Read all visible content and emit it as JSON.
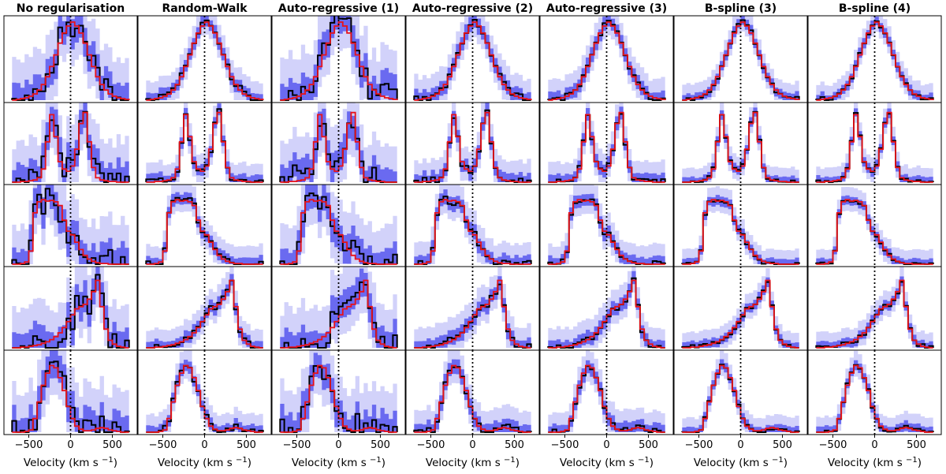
{
  "chart_data": {
    "type": "step-histogram-grid",
    "rows": 5,
    "columns": [
      "No regularisation",
      "Random-Walk",
      "Auto-regressive (1)",
      "Auto-regressive (2)",
      "Auto-regressive (3)",
      "B-spline (3)",
      "B-spline (4)"
    ],
    "xlabel": "Velocity (km s",
    "xlabel_sup": "−1",
    "xlabel_end": ")",
    "xlim": [
      -750,
      750
    ],
    "xticks": [
      -500,
      0,
      500
    ],
    "xtick_labels": [
      "−500",
      "0",
      "500"
    ],
    "reference_line": 0,
    "bins": [
      -675,
      -625,
      -575,
      -525,
      -475,
      -425,
      -375,
      -325,
      -275,
      -225,
      -175,
      -125,
      -75,
      -25,
      25,
      75,
      125,
      175,
      225,
      275,
      325,
      375,
      425,
      475,
      525,
      575,
      625,
      675
    ],
    "truth_profiles": [
      [
        0.0,
        0.01,
        0.02,
        0.03,
        0.05,
        0.08,
        0.13,
        0.2,
        0.3,
        0.43,
        0.58,
        0.73,
        0.86,
        0.95,
        1.0,
        0.95,
        0.86,
        0.73,
        0.58,
        0.43,
        0.3,
        0.2,
        0.13,
        0.08,
        0.05,
        0.03,
        0.02,
        0.01
      ],
      [
        0.0,
        0.0,
        0.01,
        0.01,
        0.02,
        0.03,
        0.06,
        0.18,
        0.55,
        0.92,
        0.62,
        0.28,
        0.18,
        0.15,
        0.22,
        0.45,
        0.8,
        0.95,
        0.55,
        0.2,
        0.06,
        0.03,
        0.02,
        0.01,
        0.01,
        0.0,
        0.0,
        0.0
      ],
      [
        0.0,
        0.0,
        0.01,
        0.03,
        0.18,
        0.7,
        0.85,
        0.88,
        0.86,
        0.87,
        0.85,
        0.8,
        0.6,
        0.45,
        0.4,
        0.3,
        0.2,
        0.12,
        0.07,
        0.04,
        0.02,
        0.01,
        0.01,
        0.0,
        0.0,
        0.0,
        0.0,
        0.0
      ],
      [
        0.0,
        0.0,
        0.01,
        0.01,
        0.02,
        0.03,
        0.04,
        0.06,
        0.08,
        0.11,
        0.15,
        0.2,
        0.27,
        0.35,
        0.44,
        0.52,
        0.55,
        0.58,
        0.65,
        0.75,
        0.9,
        0.55,
        0.25,
        0.1,
        0.05,
        0.02,
        0.01,
        0.0
      ],
      [
        0.0,
        0.0,
        0.0,
        0.01,
        0.03,
        0.18,
        0.4,
        0.62,
        0.78,
        0.88,
        0.85,
        0.72,
        0.55,
        0.34,
        0.18,
        0.08,
        0.04,
        0.02,
        0.02,
        0.03,
        0.05,
        0.06,
        0.05,
        0.03,
        0.02,
        0.01,
        0.0,
        0.0
      ]
    ],
    "column_uncertainty": [
      1.0,
      0.35,
      1.0,
      0.45,
      0.4,
      0.25,
      0.25
    ],
    "column_bias": [
      1.0,
      0.25,
      1.0,
      0.28,
      0.22,
      0.15,
      0.15
    ],
    "colors": {
      "truth": "#e8121a",
      "estimate": "#000000",
      "band_inner": "#6a6af0",
      "band_outer": "#d2d2fa",
      "reference": "#000000"
    }
  }
}
